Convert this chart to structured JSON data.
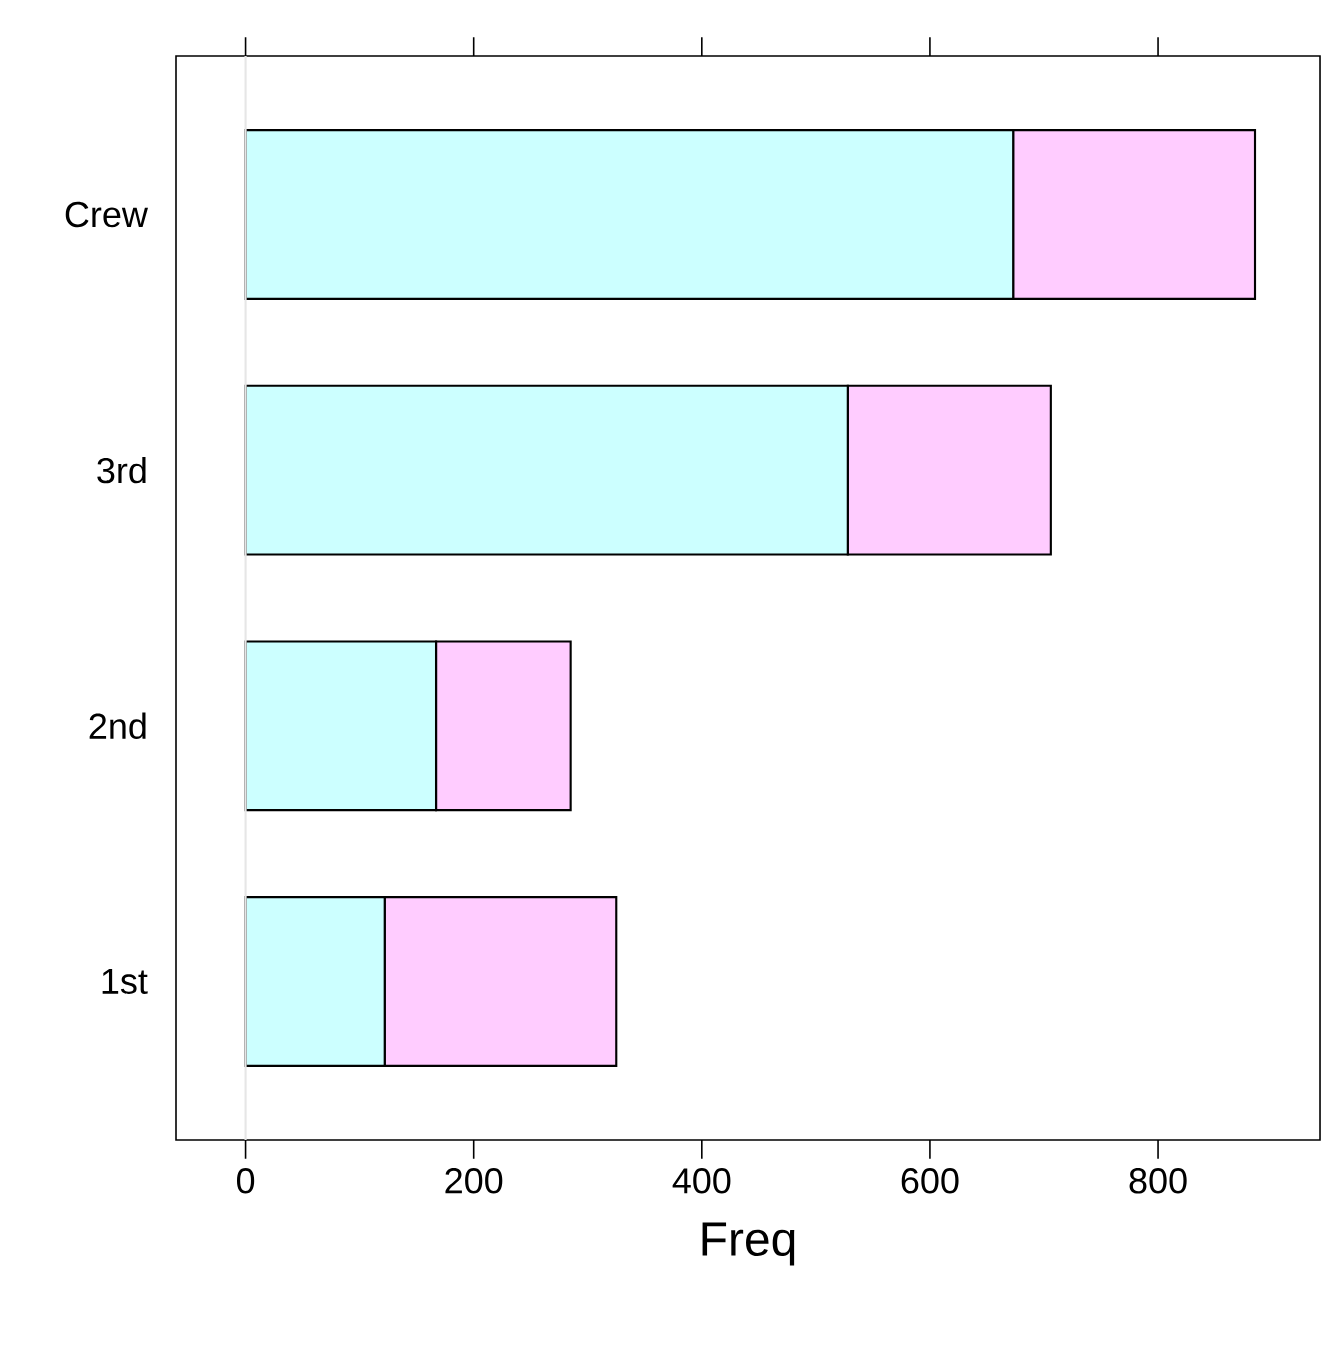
{
  "chart_data": {
    "type": "bar",
    "orientation": "horizontal",
    "stacked": true,
    "xlabel": "Freq",
    "categories": [
      "Crew",
      "3rd",
      "2nd",
      "1st"
    ],
    "series": [
      {
        "color": "#ccffff",
        "values": [
          673,
          528,
          167,
          122
        ]
      },
      {
        "color": "#ffccff",
        "values": [
          212,
          178,
          118,
          203
        ]
      }
    ],
    "xlim": [
      -61,
      942
    ],
    "xticks": [
      0,
      200,
      400,
      600,
      800
    ],
    "grid": false,
    "ref_lines": [
      {
        "axis": "x",
        "value": 0,
        "color": "#e6e6e6"
      }
    ]
  }
}
